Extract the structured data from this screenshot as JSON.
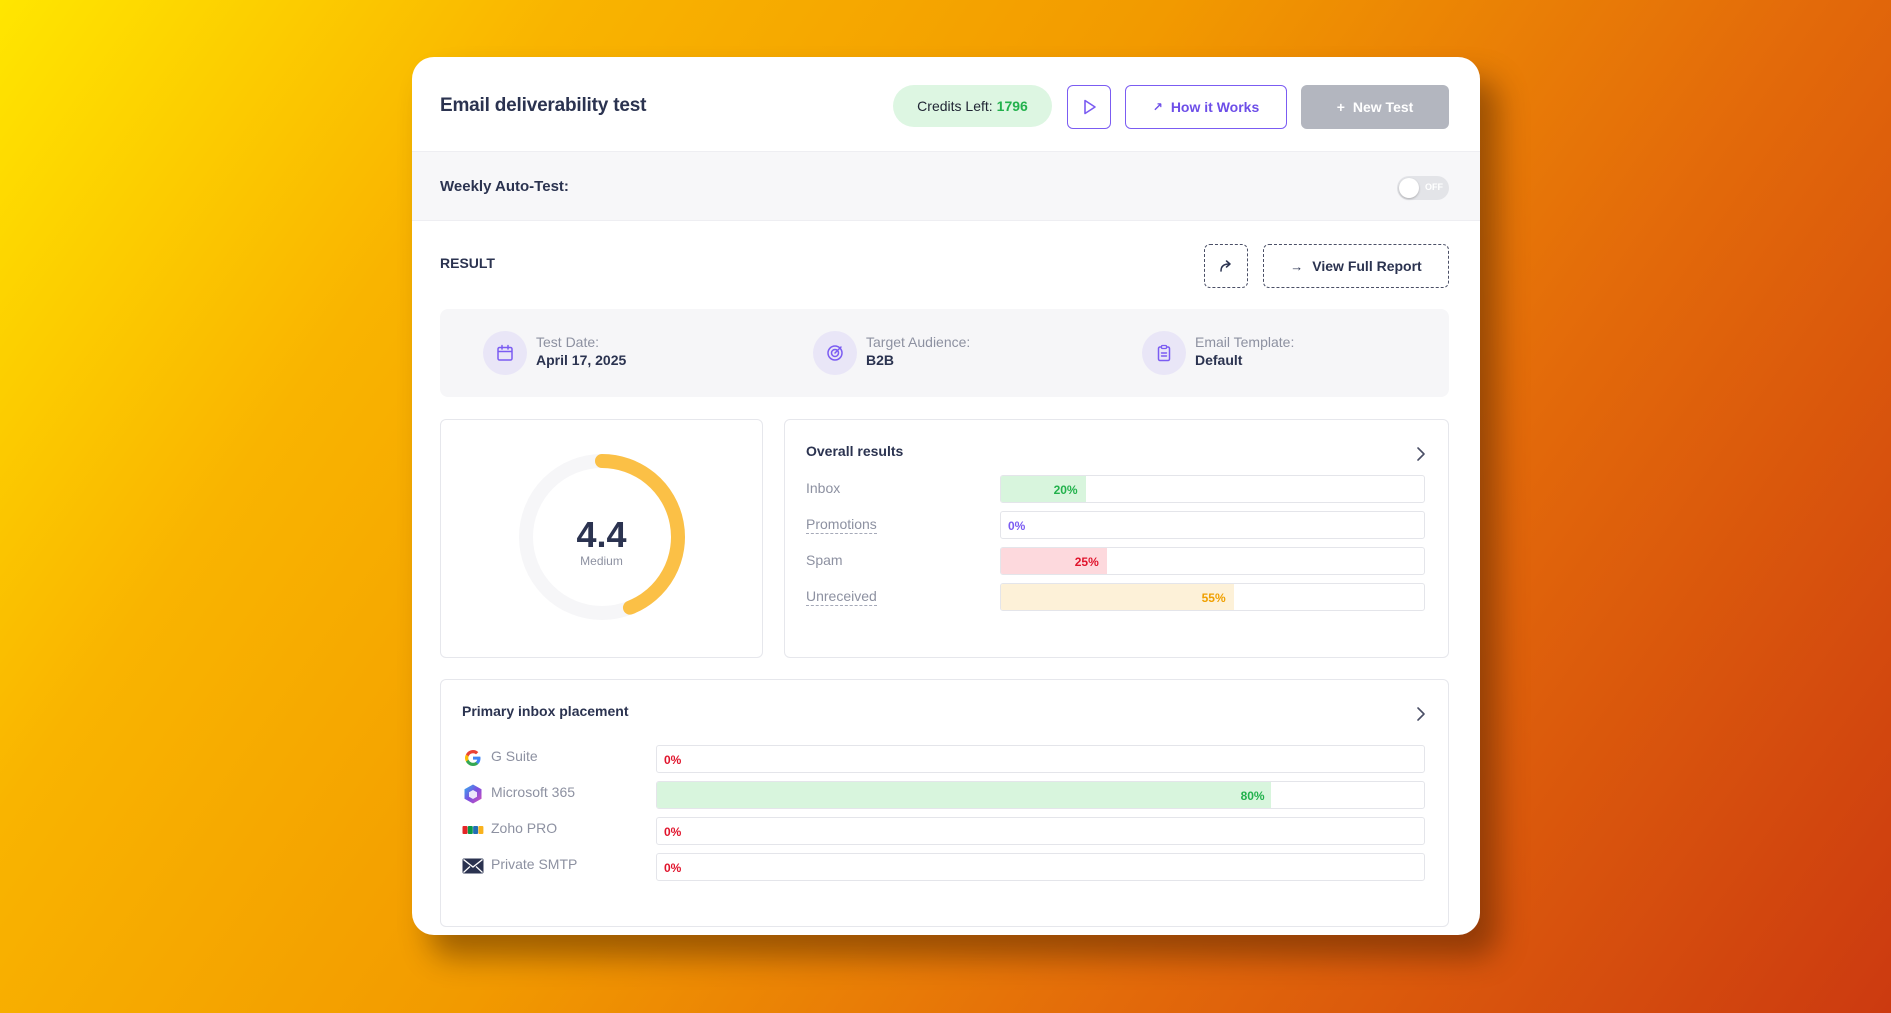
{
  "header": {
    "title": "Email deliverability test",
    "credits_label": "Credits Left:",
    "credits_value": "1796",
    "how_label": "How it Works",
    "new_label": "New Test"
  },
  "weekly": {
    "label": "Weekly Auto-Test:",
    "toggle_text": "OFF",
    "toggle_on": false
  },
  "result": {
    "label": "RESULT",
    "report_label": "View Full Report"
  },
  "info": {
    "date_label": "Test Date:",
    "date_value": "April 17, 2025",
    "audience_label": "Target Audience:",
    "audience_value": "B2B",
    "template_label": "Email Template:",
    "template_value": "Default"
  },
  "score": {
    "value": "4.4",
    "rating": "Medium",
    "fraction": 0.44,
    "color": "#fbc046"
  },
  "overall": {
    "title": "Overall results",
    "rows": [
      {
        "label": "Inbox",
        "value": "20%",
        "percent": 20,
        "fill": "#d8f5dd",
        "text": "#22b14c",
        "dashed": false
      },
      {
        "label": "Promotions",
        "value": "0%",
        "percent": 0,
        "fill": "#ece7fd",
        "text": "#7b5cf2",
        "dashed": true
      },
      {
        "label": "Spam",
        "value": "25%",
        "percent": 25,
        "fill": "#fdd9dd",
        "text": "#e0142c",
        "dashed": false
      },
      {
        "label": "Unreceived",
        "value": "55%",
        "percent": 55,
        "fill": "#fdf1d8",
        "text": "#f0a000",
        "dashed": true
      }
    ]
  },
  "placement": {
    "title": "Primary inbox placement",
    "rows": [
      {
        "label": "G Suite",
        "value": "0%",
        "percent": 0,
        "icon": "google-icon"
      },
      {
        "label": "Microsoft 365",
        "value": "80%",
        "percent": 80,
        "icon": "microsoft-365-icon"
      },
      {
        "label": "Zoho PRO",
        "value": "0%",
        "percent": 0,
        "icon": "zoho-icon"
      },
      {
        "label": "Private SMTP",
        "value": "0%",
        "percent": 0,
        "icon": "envelope-icon"
      }
    ],
    "fill_color": "#d8f5dd",
    "success_text": "#22b14c",
    "zero_text": "#e0142c"
  },
  "colors": {
    "accent": "#7b5cf2",
    "success": "#22b14c"
  }
}
